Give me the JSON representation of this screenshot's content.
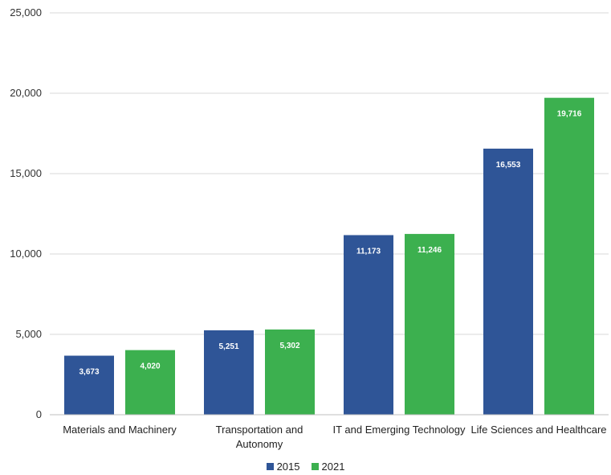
{
  "chart_data": {
    "type": "bar",
    "title": "",
    "xlabel": "",
    "ylabel": "",
    "categories": [
      [
        "Materials and Machinery"
      ],
      [
        "Transportation and",
        "Autonomy"
      ],
      [
        "IT and Emerging Technology"
      ],
      [
        "Life Sciences and Healthcare"
      ]
    ],
    "series": [
      {
        "name": "2015",
        "color": "#2f5597",
        "values": [
          3673,
          5251,
          11173,
          16553
        ],
        "labels": [
          "3,673",
          "5,251",
          "11,173",
          "16,553"
        ]
      },
      {
        "name": "2021",
        "color": "#3cb04f",
        "values": [
          4020,
          5302,
          11246,
          19716
        ],
        "labels": [
          "4,020",
          "5,302",
          "11,246",
          "19,716"
        ]
      }
    ],
    "ylim": [
      0,
      25000
    ],
    "yticks": [
      0,
      5000,
      10000,
      15000,
      20000,
      25000
    ],
    "ytick_labels": [
      "0",
      "5,000",
      "10,000",
      "15,000",
      "20,000",
      "25,000"
    ],
    "grid": true,
    "legend_position": "bottom"
  }
}
